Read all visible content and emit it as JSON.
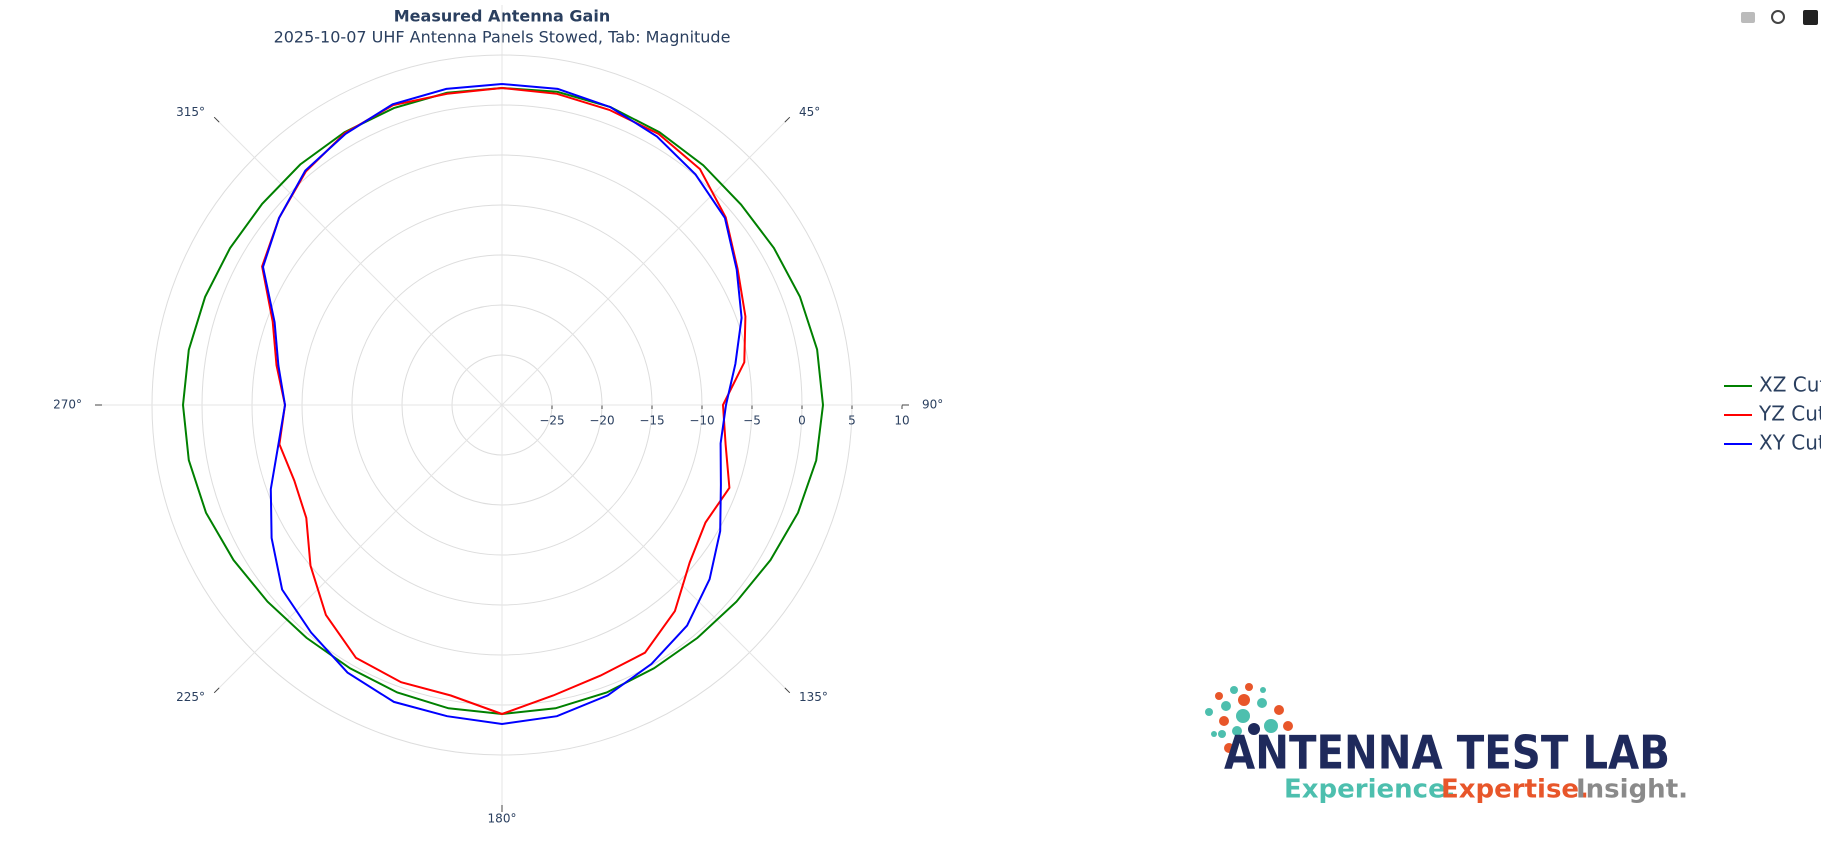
{
  "chart_data": {
    "type": "polar",
    "title": "Measured Antenna Gain",
    "subtitle": "2025-10-07 UHF Antenna Panels Stowed, Tab: Magnitude",
    "theta": [
      0,
      10,
      20,
      30,
      40,
      50,
      60,
      70,
      80,
      90,
      100,
      110,
      120,
      130,
      140,
      150,
      160,
      170,
      180,
      190,
      200,
      210,
      220,
      230,
      240,
      250,
      260,
      270,
      280,
      290,
      300,
      310,
      320,
      330,
      340,
      350,
      360
    ],
    "series": [
      {
        "name": "XZ Cut",
        "color": "#008000",
        "values": [
          1.7,
          1.8,
          1.7,
          1.5,
          1.3,
          1.2,
          1.4,
          1.7,
          2.0,
          2.1,
          1.9,
          1.5,
          1.0,
          0.6,
          0.4,
          0.4,
          0.6,
          0.8,
          0.9,
          0.8,
          0.6,
          0.4,
          0.4,
          0.6,
          1.0,
          1.5,
          1.8,
          1.9,
          1.8,
          1.6,
          1.4,
          1.3,
          1.4,
          1.5,
          1.6,
          1.7,
          1.7
        ]
      },
      {
        "name": "YZ Cut",
        "color": "#ff0000",
        "values": [
          1.7,
          1.6,
          1.4,
          1.3,
          0.8,
          -0.8,
          -2.8,
          -4.1,
          -5.4,
          -7.9,
          -7.3,
          -5.8,
          -6.5,
          -5.5,
          -3.1,
          -1.4,
          -1.2,
          -0.5,
          0.9,
          -0.5,
          -0.5,
          -0.8,
          -2.6,
          -5.0,
          -7.4,
          -7.9,
          -7.4,
          -8.3,
          -7.1,
          -5.6,
          -2.3,
          -0.9,
          0.5,
          1.4,
          1.9,
          1.6,
          1.7
        ]
      },
      {
        "name": "XY Cut",
        "color": "#0000ff",
        "values": [
          2.1,
          2.1,
          1.7,
          1.0,
          0.1,
          -0.9,
          -2.9,
          -4.5,
          -6.3,
          -7.6,
          -7.8,
          -6.7,
          -4.8,
          -2.9,
          -1.2,
          -0.1,
          0.9,
          1.6,
          1.9,
          1.6,
          1.6,
          0.9,
          -0.3,
          -1.3,
          -3.4,
          -5.4,
          -7.3,
          -8.3,
          -7.3,
          -5.8,
          -2.4,
          -0.9,
          0.6,
          1.3,
          2.0,
          2.1,
          2.1
        ]
      }
    ],
    "rlim": [
      -30,
      10
    ],
    "rticks": [
      {
        "value": -25,
        "label": "−25"
      },
      {
        "value": -20,
        "label": "−20"
      },
      {
        "value": -15,
        "label": "−15"
      },
      {
        "value": -10,
        "label": "−10"
      },
      {
        "value": -5,
        "label": "−5"
      },
      0,
      5,
      10
    ],
    "thetaticks": [
      {
        "value": 45,
        "label": "45°"
      },
      {
        "value": 90,
        "label": "90°"
      },
      {
        "value": 135,
        "label": "135°"
      },
      {
        "value": 180,
        "label": "180°"
      },
      {
        "value": 225,
        "label": "225°"
      },
      {
        "value": 270,
        "label": "270°"
      },
      {
        "value": 315,
        "label": "315°"
      }
    ],
    "direction": "clockwise",
    "grid": true,
    "legend": "right"
  },
  "logo": {
    "name": "ANTENNA TEST LAB",
    "tagline": [
      "Experience.",
      "Expertise.",
      "Insight."
    ]
  }
}
